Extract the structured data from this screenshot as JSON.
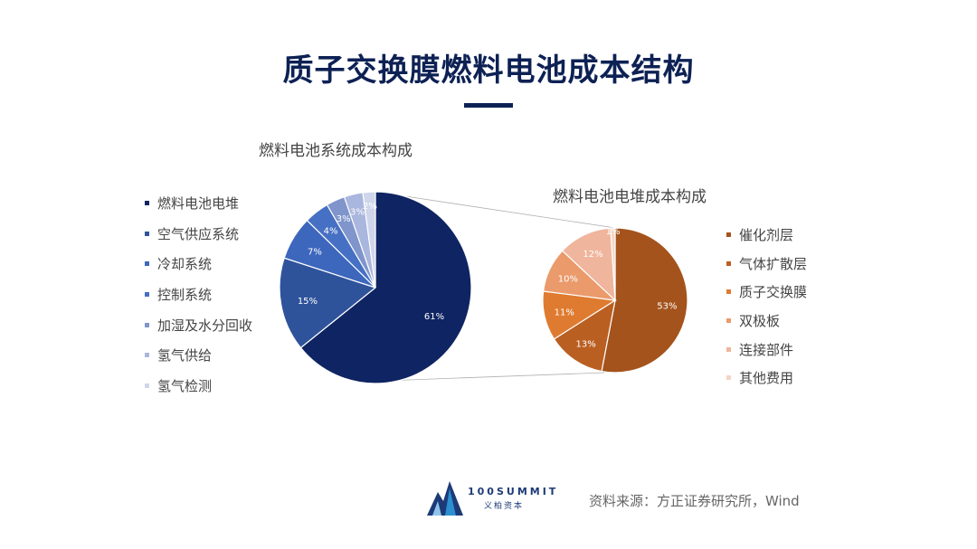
{
  "header": {
    "title": "质子交换膜燃料电池成本结构"
  },
  "footer": {
    "brand_name": "100SUMMIT",
    "brand_sub": "义柏资本",
    "source": "资料来源：方正证券研究所，Wind"
  },
  "chart_data": [
    {
      "type": "pie",
      "title": "燃料电池系统成本构成",
      "categories": [
        "燃料电池电堆",
        "空气供应系统",
        "冷却系统",
        "控制系统",
        "加湿及水分回收",
        "氢气供给",
        "氢气检测"
      ],
      "values": [
        61,
        15,
        7,
        4,
        3,
        3,
        2
      ],
      "labels": [
        "61%",
        "15%",
        "7%",
        "4%",
        "3%",
        "3%",
        "2%"
      ],
      "colors": [
        "#0f2462",
        "#2f539b",
        "#3d67bd",
        "#4670c4",
        "#7f95cb",
        "#a9b6dd",
        "#cfd6eb"
      ],
      "legend": "left"
    },
    {
      "type": "pie",
      "title": "燃料电池电堆成本构成",
      "categories": [
        "催化剂层",
        "气体扩散层",
        "质子交换膜",
        "双极板",
        "连接部件",
        "其他费用"
      ],
      "values": [
        53,
        13,
        11,
        10,
        12,
        1
      ],
      "labels": [
        "53%",
        "13%",
        "11%",
        "10%",
        "12%",
        "1%"
      ],
      "colors": [
        "#a4531c",
        "#ba5f22",
        "#df7b30",
        "#ea9a6b",
        "#f0b59d",
        "#f4d4c4"
      ],
      "legend": "right"
    }
  ]
}
